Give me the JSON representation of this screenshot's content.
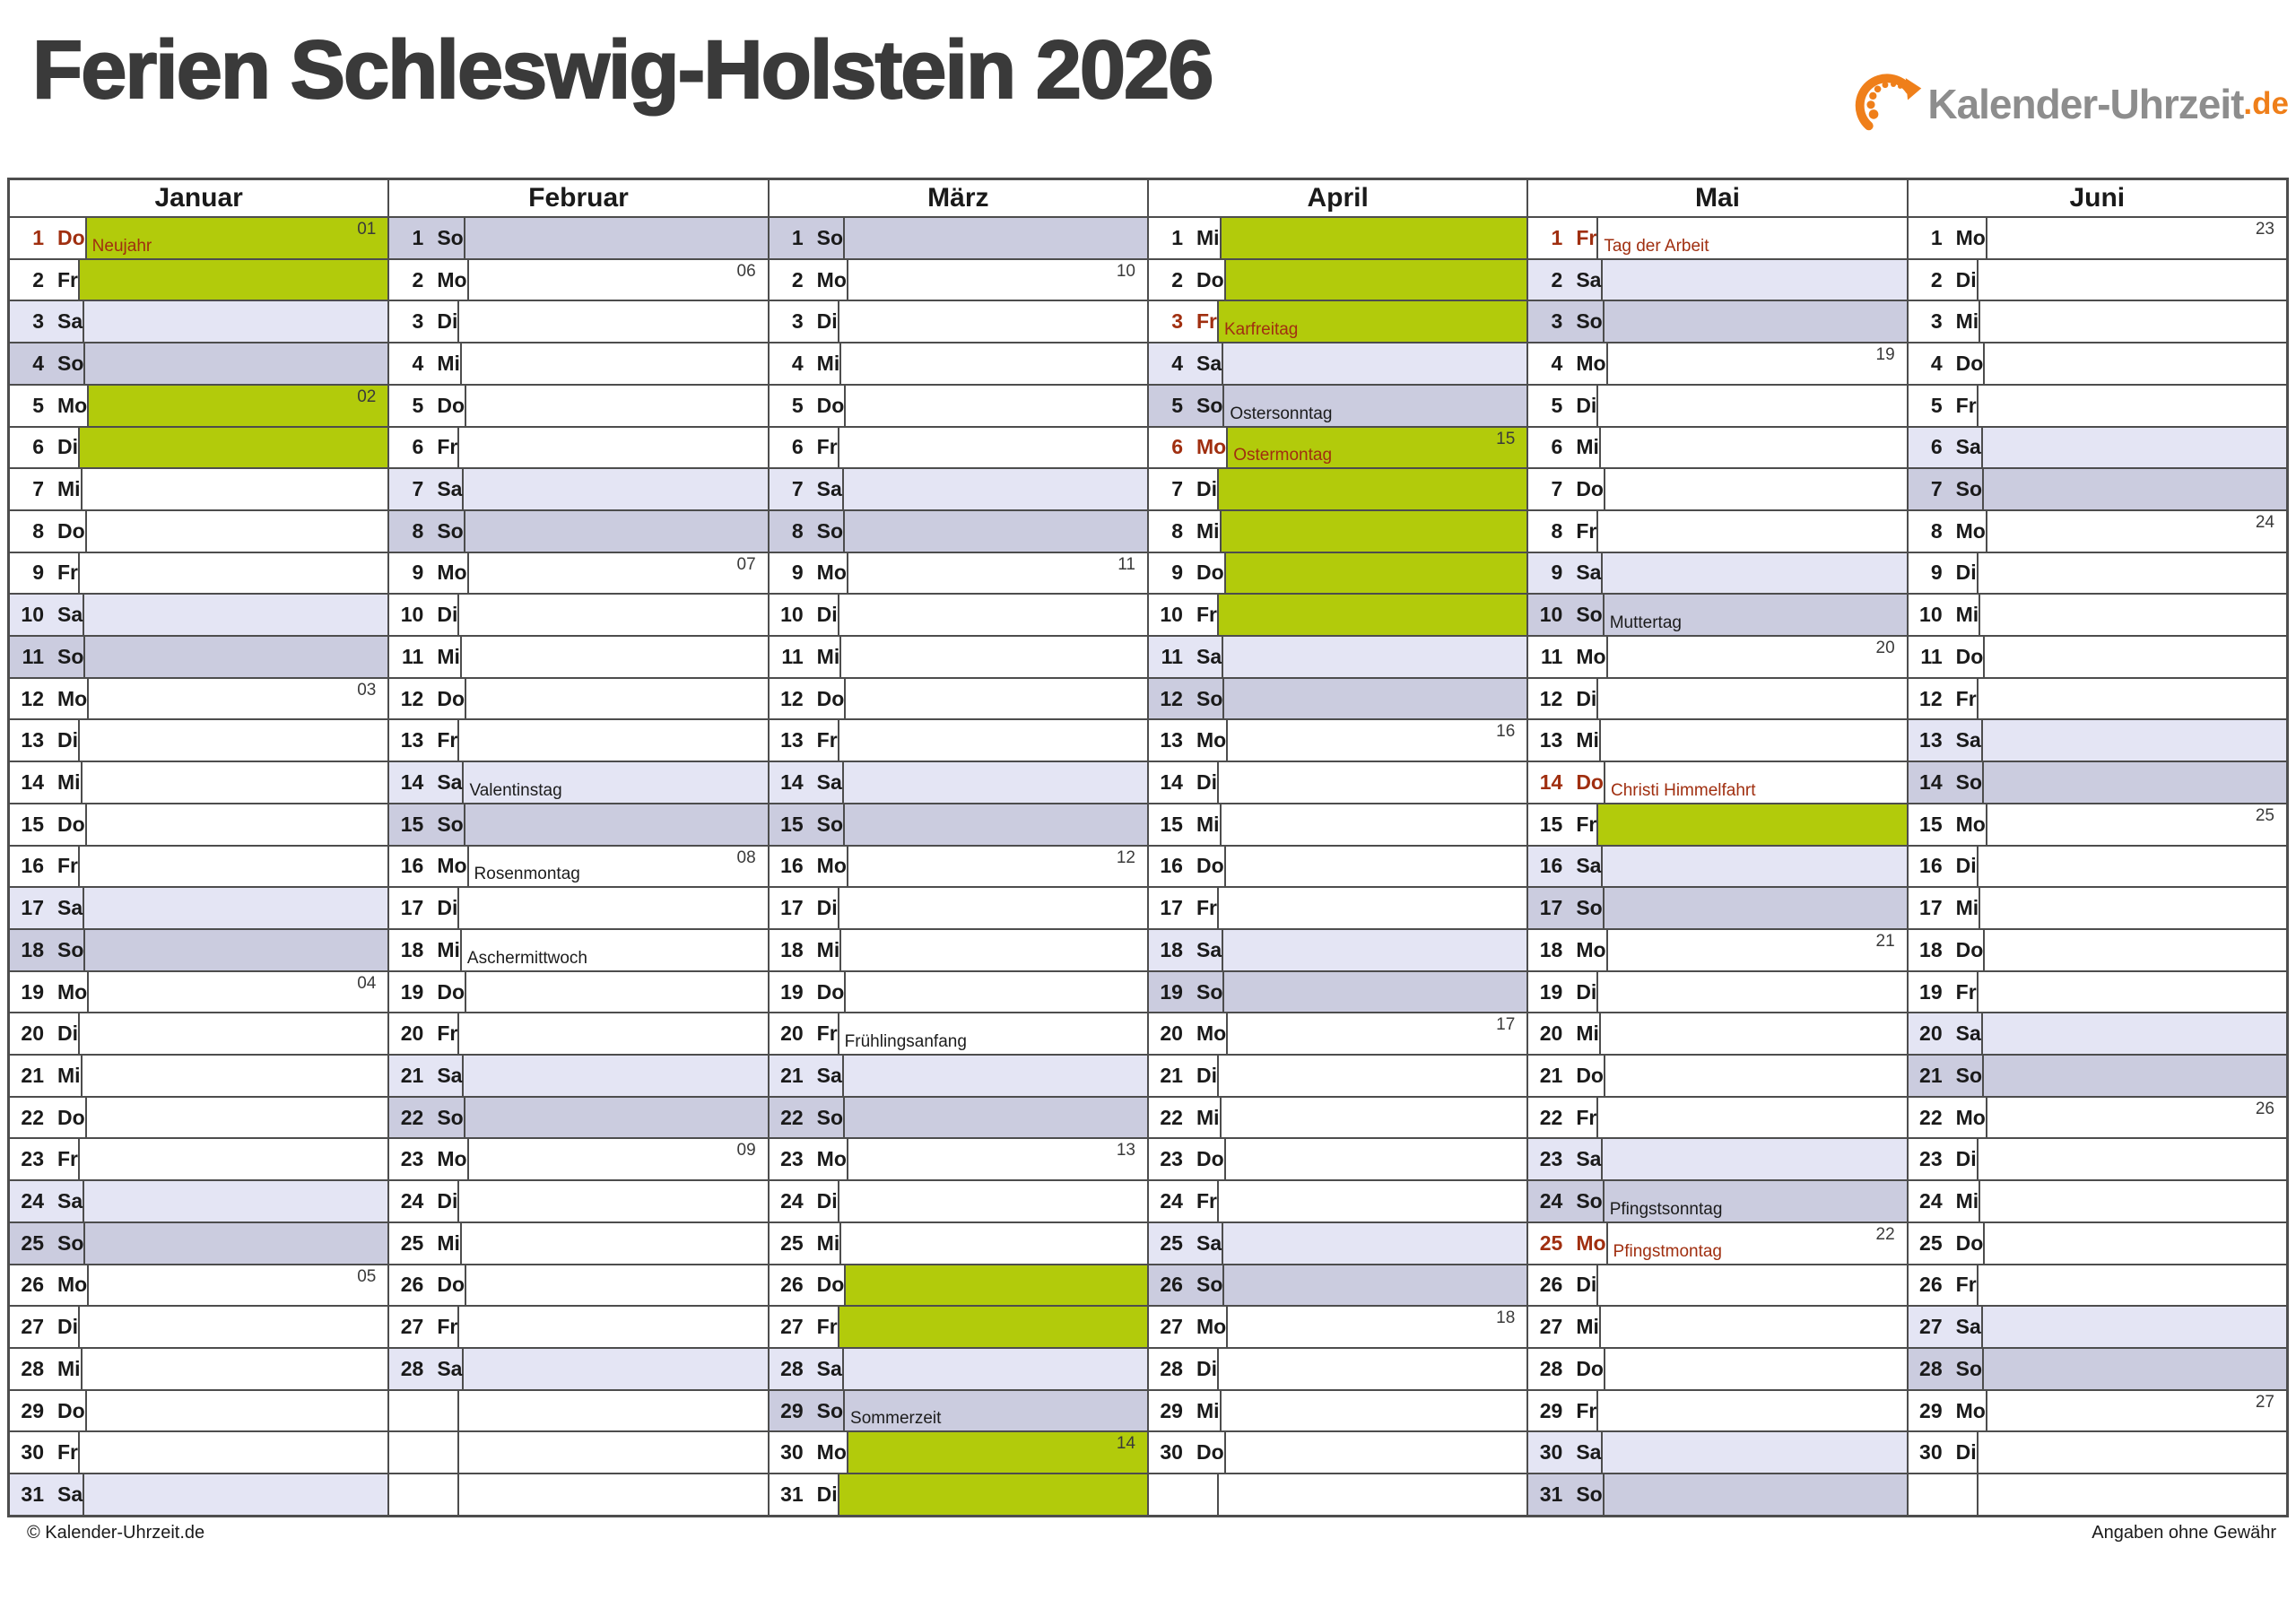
{
  "page": {
    "title": "Ferien Schleswig-Holstein 2026"
  },
  "logo": {
    "text": "Kalender-Uhrzeit",
    "tld": ".de",
    "icon": "clock-arrow-icon"
  },
  "footer": {
    "left": "© Kalender-Uhrzeit.de",
    "right": "Angaben ohne Gewähr"
  },
  "colors": {
    "ferien_green": "#b2cb0b",
    "saturday_lavender": "#e4e5f4",
    "sunday_lavender": "#cbccdf",
    "holiday_red": "#a02f10",
    "grid_line": "#4d4d4d",
    "logo_orange": "#ef7f1a",
    "logo_gray": "#8d8d8d"
  },
  "calendar": {
    "slots_per_month": 31,
    "months": [
      {
        "name": "Januar",
        "days": [
          {
            "d": 1,
            "wd": "Do",
            "fill": "green",
            "holiday": true,
            "note": "Neujahr",
            "week": "01"
          },
          {
            "d": 2,
            "wd": "Fr",
            "fill": "green"
          },
          {
            "d": 3,
            "wd": "Sa",
            "fill": "sat"
          },
          {
            "d": 4,
            "wd": "So",
            "fill": "sun"
          },
          {
            "d": 5,
            "wd": "Mo",
            "fill": "green",
            "week": "02"
          },
          {
            "d": 6,
            "wd": "Di",
            "fill": "green"
          },
          {
            "d": 7,
            "wd": "Mi"
          },
          {
            "d": 8,
            "wd": "Do"
          },
          {
            "d": 9,
            "wd": "Fr"
          },
          {
            "d": 10,
            "wd": "Sa",
            "fill": "sat"
          },
          {
            "d": 11,
            "wd": "So",
            "fill": "sun"
          },
          {
            "d": 12,
            "wd": "Mo",
            "week": "03"
          },
          {
            "d": 13,
            "wd": "Di"
          },
          {
            "d": 14,
            "wd": "Mi"
          },
          {
            "d": 15,
            "wd": "Do"
          },
          {
            "d": 16,
            "wd": "Fr"
          },
          {
            "d": 17,
            "wd": "Sa",
            "fill": "sat"
          },
          {
            "d": 18,
            "wd": "So",
            "fill": "sun"
          },
          {
            "d": 19,
            "wd": "Mo",
            "week": "04"
          },
          {
            "d": 20,
            "wd": "Di"
          },
          {
            "d": 21,
            "wd": "Mi"
          },
          {
            "d": 22,
            "wd": "Do"
          },
          {
            "d": 23,
            "wd": "Fr"
          },
          {
            "d": 24,
            "wd": "Sa",
            "fill": "sat"
          },
          {
            "d": 25,
            "wd": "So",
            "fill": "sun"
          },
          {
            "d": 26,
            "wd": "Mo",
            "week": "05"
          },
          {
            "d": 27,
            "wd": "Di"
          },
          {
            "d": 28,
            "wd": "Mi"
          },
          {
            "d": 29,
            "wd": "Do"
          },
          {
            "d": 30,
            "wd": "Fr"
          },
          {
            "d": 31,
            "wd": "Sa",
            "fill": "sat"
          }
        ]
      },
      {
        "name": "Februar",
        "days": [
          {
            "d": 1,
            "wd": "So",
            "fill": "sun"
          },
          {
            "d": 2,
            "wd": "Mo",
            "week": "06"
          },
          {
            "d": 3,
            "wd": "Di"
          },
          {
            "d": 4,
            "wd": "Mi"
          },
          {
            "d": 5,
            "wd": "Do"
          },
          {
            "d": 6,
            "wd": "Fr"
          },
          {
            "d": 7,
            "wd": "Sa",
            "fill": "sat"
          },
          {
            "d": 8,
            "wd": "So",
            "fill": "sun"
          },
          {
            "d": 9,
            "wd": "Mo",
            "week": "07"
          },
          {
            "d": 10,
            "wd": "Di"
          },
          {
            "d": 11,
            "wd": "Mi"
          },
          {
            "d": 12,
            "wd": "Do"
          },
          {
            "d": 13,
            "wd": "Fr"
          },
          {
            "d": 14,
            "wd": "Sa",
            "fill": "sat",
            "note": "Valentinstag"
          },
          {
            "d": 15,
            "wd": "So",
            "fill": "sun"
          },
          {
            "d": 16,
            "wd": "Mo",
            "week": "08",
            "note": "Rosenmontag"
          },
          {
            "d": 17,
            "wd": "Di"
          },
          {
            "d": 18,
            "wd": "Mi",
            "note": "Aschermittwoch"
          },
          {
            "d": 19,
            "wd": "Do"
          },
          {
            "d": 20,
            "wd": "Fr"
          },
          {
            "d": 21,
            "wd": "Sa",
            "fill": "sat"
          },
          {
            "d": 22,
            "wd": "So",
            "fill": "sun"
          },
          {
            "d": 23,
            "wd": "Mo",
            "week": "09"
          },
          {
            "d": 24,
            "wd": "Di"
          },
          {
            "d": 25,
            "wd": "Mi"
          },
          {
            "d": 26,
            "wd": "Do"
          },
          {
            "d": 27,
            "wd": "Fr"
          },
          {
            "d": 28,
            "wd": "Sa",
            "fill": "sat"
          },
          null,
          null,
          null
        ]
      },
      {
        "name": "März",
        "days": [
          {
            "d": 1,
            "wd": "So",
            "fill": "sun"
          },
          {
            "d": 2,
            "wd": "Mo",
            "week": "10"
          },
          {
            "d": 3,
            "wd": "Di"
          },
          {
            "d": 4,
            "wd": "Mi"
          },
          {
            "d": 5,
            "wd": "Do"
          },
          {
            "d": 6,
            "wd": "Fr"
          },
          {
            "d": 7,
            "wd": "Sa",
            "fill": "sat"
          },
          {
            "d": 8,
            "wd": "So",
            "fill": "sun"
          },
          {
            "d": 9,
            "wd": "Mo",
            "week": "11"
          },
          {
            "d": 10,
            "wd": "Di"
          },
          {
            "d": 11,
            "wd": "Mi"
          },
          {
            "d": 12,
            "wd": "Do"
          },
          {
            "d": 13,
            "wd": "Fr"
          },
          {
            "d": 14,
            "wd": "Sa",
            "fill": "sat"
          },
          {
            "d": 15,
            "wd": "So",
            "fill": "sun"
          },
          {
            "d": 16,
            "wd": "Mo",
            "week": "12"
          },
          {
            "d": 17,
            "wd": "Di"
          },
          {
            "d": 18,
            "wd": "Mi"
          },
          {
            "d": 19,
            "wd": "Do"
          },
          {
            "d": 20,
            "wd": "Fr",
            "note": "Frühlingsanfang"
          },
          {
            "d": 21,
            "wd": "Sa",
            "fill": "sat"
          },
          {
            "d": 22,
            "wd": "So",
            "fill": "sun"
          },
          {
            "d": 23,
            "wd": "Mo",
            "week": "13"
          },
          {
            "d": 24,
            "wd": "Di"
          },
          {
            "d": 25,
            "wd": "Mi"
          },
          {
            "d": 26,
            "wd": "Do",
            "fill": "green"
          },
          {
            "d": 27,
            "wd": "Fr",
            "fill": "green"
          },
          {
            "d": 28,
            "wd": "Sa",
            "fill": "sat"
          },
          {
            "d": 29,
            "wd": "So",
            "fill": "sun",
            "note": "Sommerzeit"
          },
          {
            "d": 30,
            "wd": "Mo",
            "fill": "green",
            "week": "14"
          },
          {
            "d": 31,
            "wd": "Di",
            "fill": "green"
          }
        ]
      },
      {
        "name": "April",
        "days": [
          {
            "d": 1,
            "wd": "Mi",
            "fill": "green"
          },
          {
            "d": 2,
            "wd": "Do",
            "fill": "green"
          },
          {
            "d": 3,
            "wd": "Fr",
            "fill": "green",
            "holiday": true,
            "note": "Karfreitag"
          },
          {
            "d": 4,
            "wd": "Sa",
            "fill": "sat"
          },
          {
            "d": 5,
            "wd": "So",
            "fill": "sun",
            "note": "Ostersonntag"
          },
          {
            "d": 6,
            "wd": "Mo",
            "fill": "green",
            "holiday": true,
            "note": "Ostermontag",
            "week": "15"
          },
          {
            "d": 7,
            "wd": "Di",
            "fill": "green"
          },
          {
            "d": 8,
            "wd": "Mi",
            "fill": "green"
          },
          {
            "d": 9,
            "wd": "Do",
            "fill": "green"
          },
          {
            "d": 10,
            "wd": "Fr",
            "fill": "green"
          },
          {
            "d": 11,
            "wd": "Sa",
            "fill": "sat"
          },
          {
            "d": 12,
            "wd": "So",
            "fill": "sun"
          },
          {
            "d": 13,
            "wd": "Mo",
            "week": "16"
          },
          {
            "d": 14,
            "wd": "Di"
          },
          {
            "d": 15,
            "wd": "Mi"
          },
          {
            "d": 16,
            "wd": "Do"
          },
          {
            "d": 17,
            "wd": "Fr"
          },
          {
            "d": 18,
            "wd": "Sa",
            "fill": "sat"
          },
          {
            "d": 19,
            "wd": "So",
            "fill": "sun"
          },
          {
            "d": 20,
            "wd": "Mo",
            "week": "17"
          },
          {
            "d": 21,
            "wd": "Di"
          },
          {
            "d": 22,
            "wd": "Mi"
          },
          {
            "d": 23,
            "wd": "Do"
          },
          {
            "d": 24,
            "wd": "Fr"
          },
          {
            "d": 25,
            "wd": "Sa",
            "fill": "sat"
          },
          {
            "d": 26,
            "wd": "So",
            "fill": "sun"
          },
          {
            "d": 27,
            "wd": "Mo",
            "week": "18"
          },
          {
            "d": 28,
            "wd": "Di"
          },
          {
            "d": 29,
            "wd": "Mi"
          },
          {
            "d": 30,
            "wd": "Do"
          },
          null
        ]
      },
      {
        "name": "Mai",
        "days": [
          {
            "d": 1,
            "wd": "Fr",
            "holiday": true,
            "note": "Tag der Arbeit"
          },
          {
            "d": 2,
            "wd": "Sa",
            "fill": "sat"
          },
          {
            "d": 3,
            "wd": "So",
            "fill": "sun"
          },
          {
            "d": 4,
            "wd": "Mo",
            "week": "19"
          },
          {
            "d": 5,
            "wd": "Di"
          },
          {
            "d": 6,
            "wd": "Mi"
          },
          {
            "d": 7,
            "wd": "Do"
          },
          {
            "d": 8,
            "wd": "Fr"
          },
          {
            "d": 9,
            "wd": "Sa",
            "fill": "sat"
          },
          {
            "d": 10,
            "wd": "So",
            "fill": "sun",
            "note": "Muttertag"
          },
          {
            "d": 11,
            "wd": "Mo",
            "week": "20"
          },
          {
            "d": 12,
            "wd": "Di"
          },
          {
            "d": 13,
            "wd": "Mi"
          },
          {
            "d": 14,
            "wd": "Do",
            "holiday": true,
            "note": "Christi Himmelfahrt"
          },
          {
            "d": 15,
            "wd": "Fr",
            "fill": "green"
          },
          {
            "d": 16,
            "wd": "Sa",
            "fill": "sat"
          },
          {
            "d": 17,
            "wd": "So",
            "fill": "sun"
          },
          {
            "d": 18,
            "wd": "Mo",
            "week": "21"
          },
          {
            "d": 19,
            "wd": "Di"
          },
          {
            "d": 20,
            "wd": "Mi"
          },
          {
            "d": 21,
            "wd": "Do"
          },
          {
            "d": 22,
            "wd": "Fr"
          },
          {
            "d": 23,
            "wd": "Sa",
            "fill": "sat"
          },
          {
            "d": 24,
            "wd": "So",
            "fill": "sun",
            "note": "Pfingstsonntag"
          },
          {
            "d": 25,
            "wd": "Mo",
            "holiday": true,
            "note": "Pfingstmontag",
            "week": "22"
          },
          {
            "d": 26,
            "wd": "Di"
          },
          {
            "d": 27,
            "wd": "Mi"
          },
          {
            "d": 28,
            "wd": "Do"
          },
          {
            "d": 29,
            "wd": "Fr"
          },
          {
            "d": 30,
            "wd": "Sa",
            "fill": "sat"
          },
          {
            "d": 31,
            "wd": "So",
            "fill": "sun"
          }
        ]
      },
      {
        "name": "Juni",
        "days": [
          {
            "d": 1,
            "wd": "Mo",
            "week": "23"
          },
          {
            "d": 2,
            "wd": "Di"
          },
          {
            "d": 3,
            "wd": "Mi"
          },
          {
            "d": 4,
            "wd": "Do"
          },
          {
            "d": 5,
            "wd": "Fr"
          },
          {
            "d": 6,
            "wd": "Sa",
            "fill": "sat"
          },
          {
            "d": 7,
            "wd": "So",
            "fill": "sun"
          },
          {
            "d": 8,
            "wd": "Mo",
            "week": "24"
          },
          {
            "d": 9,
            "wd": "Di"
          },
          {
            "d": 10,
            "wd": "Mi"
          },
          {
            "d": 11,
            "wd": "Do"
          },
          {
            "d": 12,
            "wd": "Fr"
          },
          {
            "d": 13,
            "wd": "Sa",
            "fill": "sat"
          },
          {
            "d": 14,
            "wd": "So",
            "fill": "sun"
          },
          {
            "d": 15,
            "wd": "Mo",
            "week": "25"
          },
          {
            "d": 16,
            "wd": "Di"
          },
          {
            "d": 17,
            "wd": "Mi"
          },
          {
            "d": 18,
            "wd": "Do"
          },
          {
            "d": 19,
            "wd": "Fr"
          },
          {
            "d": 20,
            "wd": "Sa",
            "fill": "sat"
          },
          {
            "d": 21,
            "wd": "So",
            "fill": "sun"
          },
          {
            "d": 22,
            "wd": "Mo",
            "week": "26"
          },
          {
            "d": 23,
            "wd": "Di"
          },
          {
            "d": 24,
            "wd": "Mi"
          },
          {
            "d": 25,
            "wd": "Do"
          },
          {
            "d": 26,
            "wd": "Fr"
          },
          {
            "d": 27,
            "wd": "Sa",
            "fill": "sat"
          },
          {
            "d": 28,
            "wd": "So",
            "fill": "sun"
          },
          {
            "d": 29,
            "wd": "Mo",
            "week": "27"
          },
          {
            "d": 30,
            "wd": "Di"
          },
          null
        ]
      }
    ]
  }
}
